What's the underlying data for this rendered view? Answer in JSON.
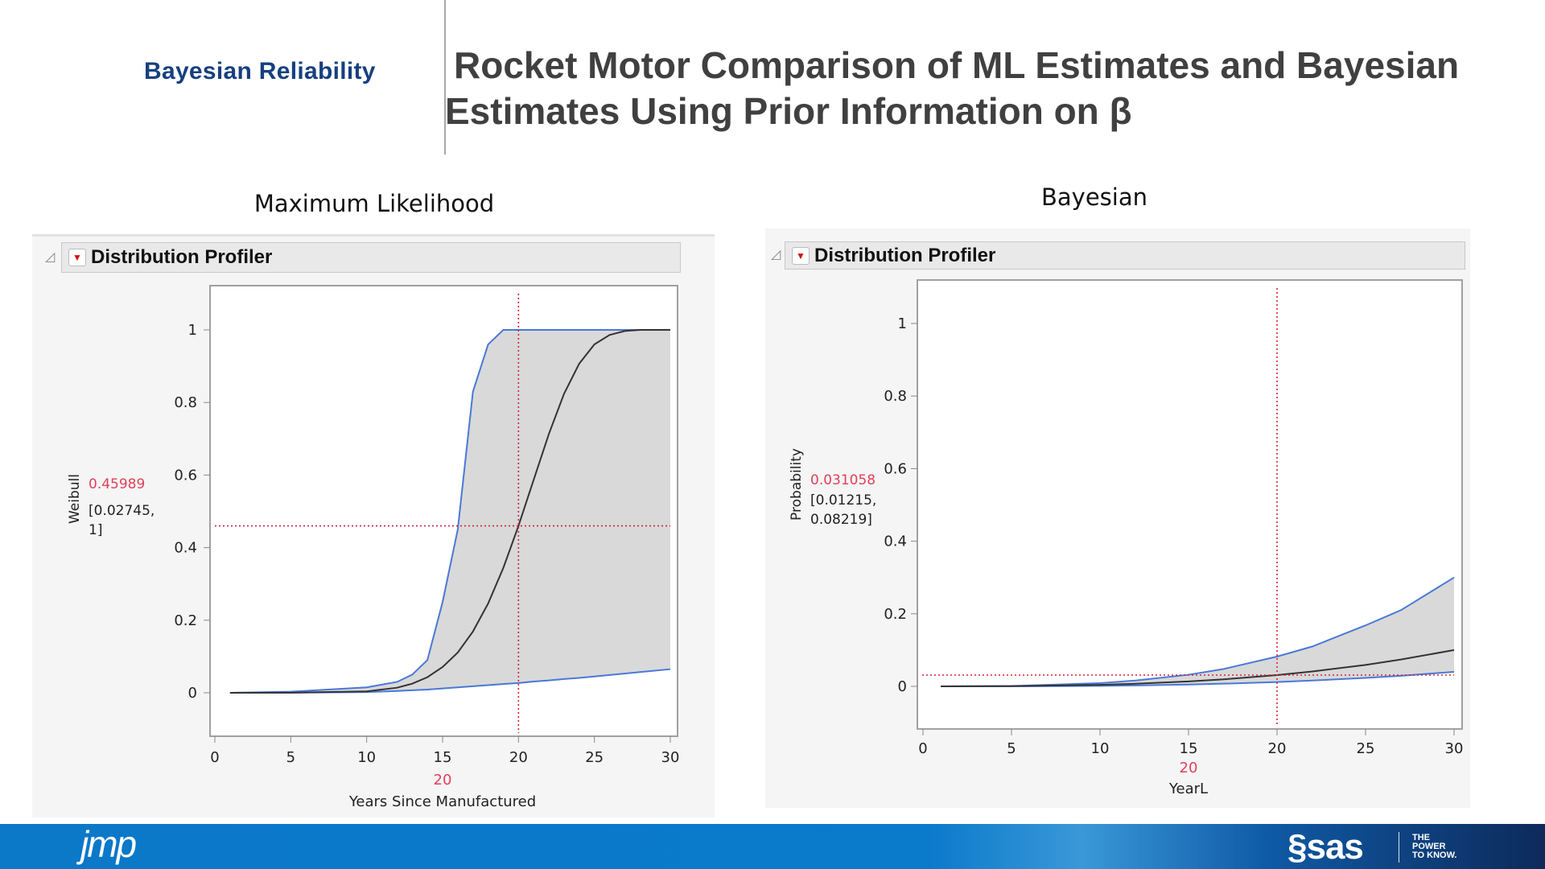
{
  "header": {
    "brand": "Bayesian Reliability",
    "title_line1": "Rocket Motor Comparison of ML Estimates and Bayesian",
    "title_line2": "Estimates Using Prior Information on β"
  },
  "panels": [
    {
      "subtitle": "Maximum Likelihood",
      "header": "Distribution Profiler",
      "menu_icon": "red-triangle-down-icon",
      "disclosure_icon": "disclosure-triangle-icon"
    },
    {
      "subtitle": "Bayesian",
      "header": "Distribution Profiler",
      "menu_icon": "red-triangle-down-icon",
      "disclosure_icon": "disclosure-triangle-icon"
    }
  ],
  "footer": {
    "left_logo": "jmp",
    "right_logo": "sas",
    "tagline": [
      "THE",
      "POWER",
      "TO KNOW."
    ]
  },
  "chart_data": [
    {
      "type": "line",
      "ylabel": "Weibull",
      "xlabel": "Years Since Manufactured",
      "xlim": [
        0,
        30
      ],
      "ylim": [
        -0.1,
        1.1
      ],
      "xticks": [
        "0",
        "5",
        "10",
        "15",
        "20",
        "25",
        "30"
      ],
      "yticks": [
        "0",
        "0.2",
        "0.4",
        "0.6",
        "0.8",
        "1"
      ],
      "current_x": "20",
      "current_value": "0.45989",
      "interval_line1": "[0.02745,",
      "interval_line2": "1]",
      "crosshair": {
        "x": 20,
        "y": 0.45989
      },
      "band_fill": "#d9d9d9",
      "colors": {
        "estimate": "#333333",
        "bounds": "#4a78d8",
        "crosshair": "#d0253a"
      },
      "x": [
        1,
        5,
        10,
        12,
        13,
        14,
        15,
        16,
        17,
        18,
        19,
        20,
        21,
        22,
        23,
        24,
        25,
        26,
        27,
        28,
        30
      ],
      "estimate": [
        0,
        0.0003,
        0.004,
        0.014,
        0.025,
        0.043,
        0.071,
        0.111,
        0.169,
        0.246,
        0.344,
        0.46,
        0.587,
        0.713,
        0.824,
        0.907,
        0.96,
        0.986,
        0.997,
        1.0,
        1.0
      ],
      "upper": [
        0,
        0.003,
        0.015,
        0.03,
        0.05,
        0.09,
        0.25,
        0.45,
        0.83,
        0.96,
        1.0,
        1.0,
        1.0,
        1.0,
        1.0,
        1.0,
        1.0,
        1.0,
        1.0,
        1.0,
        1.0
      ],
      "lower": [
        0,
        0.0002,
        0.002,
        0.005,
        0.007,
        0.009,
        0.012,
        0.015,
        0.018,
        0.021,
        0.024,
        0.027,
        0.031,
        0.034,
        0.038,
        0.041,
        0.045,
        0.049,
        0.053,
        0.057,
        0.065
      ]
    },
    {
      "type": "line",
      "ylabel": "Probability",
      "xlabel": "YearL",
      "xlim": [
        0,
        30
      ],
      "ylim": [
        -0.1,
        1.1
      ],
      "xticks": [
        "0",
        "5",
        "10",
        "15",
        "20",
        "25",
        "30"
      ],
      "yticks": [
        "0",
        "0.2",
        "0.4",
        "0.6",
        "0.8",
        "1"
      ],
      "current_x": "20",
      "current_value": "0.031058",
      "interval_line1": "[0.01215,",
      "interval_line2": "0.08219]",
      "crosshair": {
        "x": 20,
        "y": 0.031058
      },
      "band_fill": "#d9d9d9",
      "colors": {
        "estimate": "#333333",
        "bounds": "#4a78d8",
        "crosshair": "#d0253a"
      },
      "x": [
        1,
        5,
        10,
        12,
        15,
        17,
        20,
        22,
        25,
        27,
        30
      ],
      "estimate": [
        0,
        0.0005,
        0.0042,
        0.0071,
        0.0135,
        0.0194,
        0.031,
        0.041,
        0.059,
        0.074,
        0.1
      ],
      "upper": [
        0,
        0.001,
        0.0089,
        0.016,
        0.032,
        0.048,
        0.082,
        0.11,
        0.168,
        0.21,
        0.3
      ],
      "lower": [
        0,
        0.0002,
        0.0015,
        0.0026,
        0.0051,
        0.0074,
        0.012,
        0.016,
        0.0234,
        0.029,
        0.04
      ]
    }
  ]
}
